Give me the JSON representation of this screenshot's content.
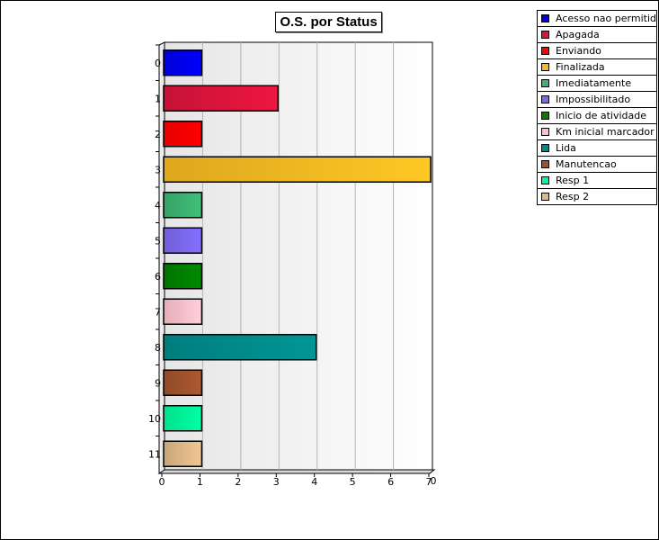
{
  "chart_data": {
    "type": "bar",
    "orientation": "horizontal",
    "title": "O.S. por Status",
    "categories": [
      "0",
      "1",
      "2",
      "3",
      "4",
      "5",
      "6",
      "7",
      "8",
      "9",
      "10",
      "11"
    ],
    "series_names": [
      "Acesso nao permitido",
      "Apagada",
      "Enviando",
      "Finalizada",
      "Imediatamente",
      "Impossibilitado",
      "Inicio de atividade",
      "Km inicial marcador",
      "Lida",
      "Manutencao",
      "Resp 1",
      "Resp 2"
    ],
    "values": [
      1,
      3,
      1,
      7,
      1,
      1,
      1,
      1,
      4,
      1,
      1,
      1
    ],
    "colors": [
      "#0000ee",
      "#dc143c",
      "#ff0000",
      "#f5b921",
      "#3cb371",
      "#7b68ee",
      "#008000",
      "#ffc0cb",
      "#008b8b",
      "#a0522d",
      "#00fa9a",
      "#deb887"
    ],
    "xticks": [
      "0",
      "1",
      "2",
      "3",
      "4",
      "5",
      "6",
      "7"
    ],
    "axis_corner_label": "0",
    "xlim": [
      0,
      7
    ],
    "grid": true,
    "legend_position": "top-right"
  }
}
